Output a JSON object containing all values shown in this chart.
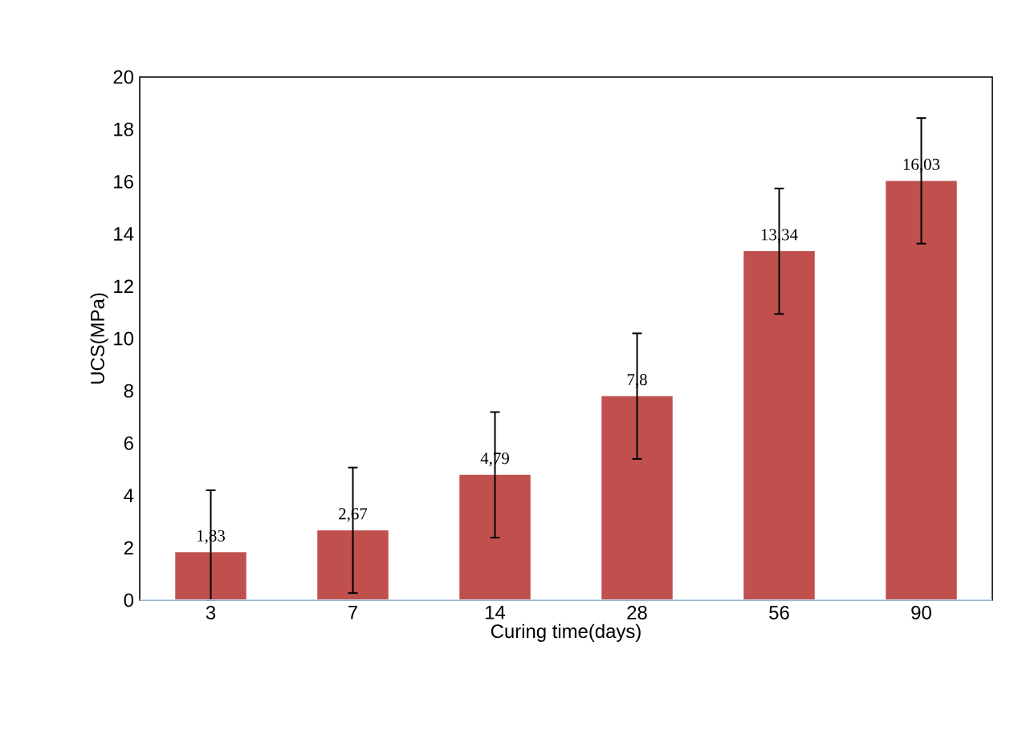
{
  "chart_data": {
    "type": "bar",
    "xlabel": "Curing time(days)",
    "ylabel": "UCS(MPa)",
    "categories": [
      "3",
      "7",
      "14",
      "28",
      "56",
      "90"
    ],
    "values": [
      1.83,
      2.67,
      4.79,
      7.8,
      13.34,
      16.03
    ],
    "errors": [
      [
        0,
        4.2
      ],
      2.4,
      2.4,
      2.4,
      2.4,
      2.4
    ],
    "value_labels": [
      "1,83",
      "2,67",
      "4,79",
      "7,8",
      "13,34",
      "16,03"
    ],
    "color": "#c0504d",
    "ylim": [
      0,
      20
    ],
    "yticks": [
      0,
      2,
      4,
      6,
      8,
      10,
      12,
      14,
      16,
      18,
      20
    ],
    "grid": false
  }
}
